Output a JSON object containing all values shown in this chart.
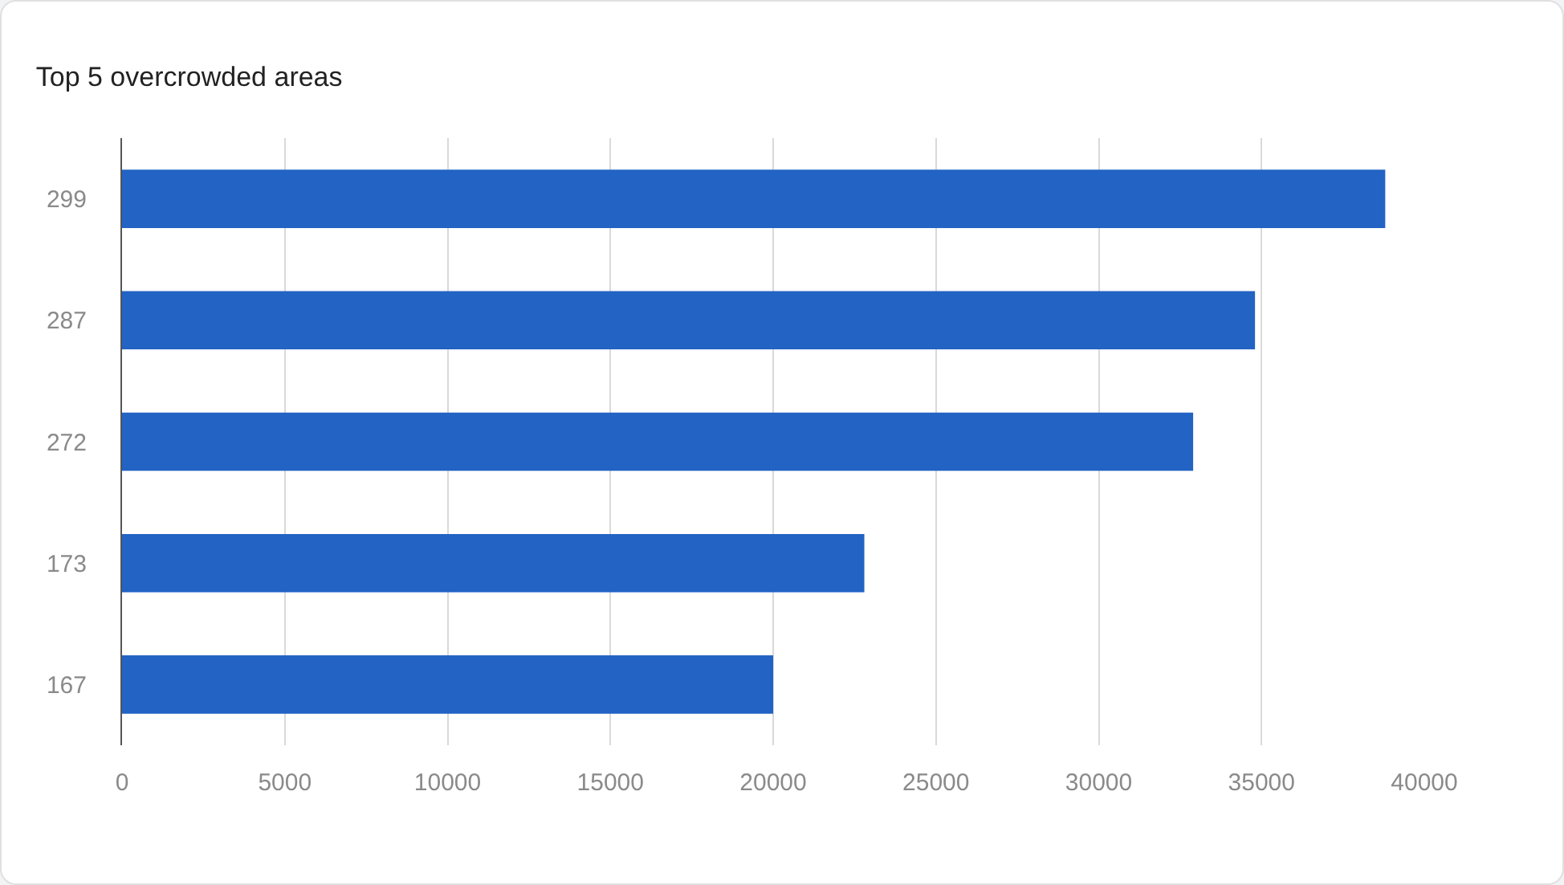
{
  "chart_data": {
    "type": "bar",
    "orientation": "horizontal",
    "title": "Top 5 overcrowded areas",
    "categories": [
      "299",
      "287",
      "272",
      "173",
      "167"
    ],
    "values": [
      38800,
      34800,
      32900,
      22800,
      20000
    ],
    "color": "#2263c3",
    "xlim": [
      0,
      40000
    ],
    "xticks": [
      0,
      5000,
      10000,
      15000,
      20000,
      25000,
      30000,
      35000,
      40000
    ],
    "grid": "x"
  }
}
